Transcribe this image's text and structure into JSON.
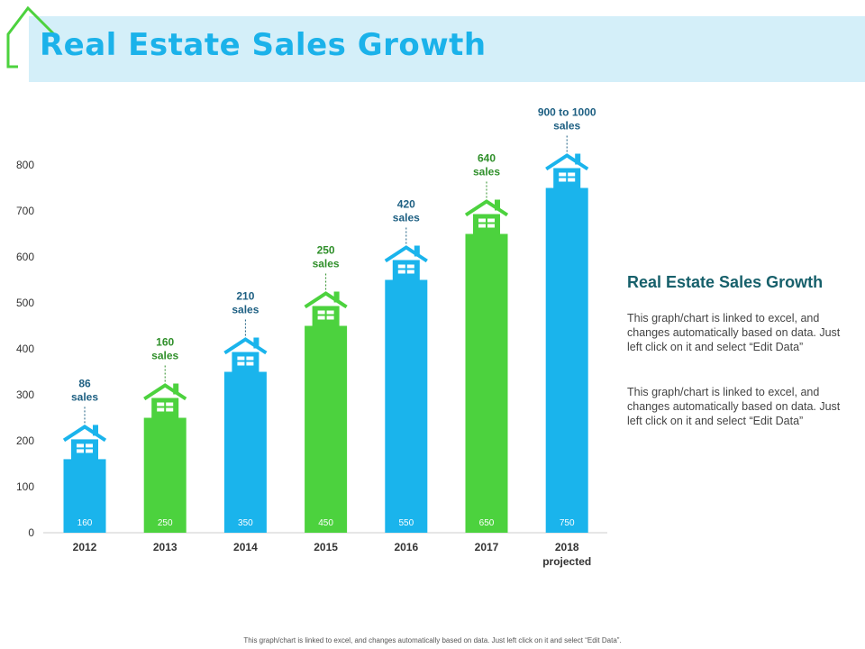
{
  "header": {
    "title": "Real Estate Sales Growth"
  },
  "side": {
    "heading": "Real Estate Sales Growth",
    "paragraphs": [
      "This graph/chart is linked to excel, and changes automatically based on data. Just left click on it and select “Edit Data”",
      "This graph/chart is linked to excel, and changes automatically based on data. Just left click on it and select “Edit Data”"
    ]
  },
  "footer": "This graph/chart is linked to excel, and changes automatically based on data. Just left click on it and select “Edit Data”.",
  "colors": {
    "blue": "#1ab4ec",
    "green": "#4cd23e",
    "label_blue": "#1d5f82",
    "label_green": "#2f8f2a"
  },
  "chart_data": {
    "type": "bar",
    "categories": [
      "2012",
      "2013",
      "2014",
      "2015",
      "2016",
      "2017",
      "2018 projected"
    ],
    "category_lines": [
      [
        "2012"
      ],
      [
        "2013"
      ],
      [
        "2014"
      ],
      [
        "2015"
      ],
      [
        "2016"
      ],
      [
        "2017"
      ],
      [
        "2018",
        "projected"
      ]
    ],
    "values": [
      160,
      250,
      350,
      450,
      550,
      650,
      750
    ],
    "bar_colors": [
      "blue",
      "green",
      "blue",
      "green",
      "blue",
      "green",
      "blue"
    ],
    "annotations": [
      [
        "86",
        "sales"
      ],
      [
        "160",
        "sales"
      ],
      [
        "210",
        "sales"
      ],
      [
        "250",
        "sales"
      ],
      [
        "420",
        "sales"
      ],
      [
        "640",
        "sales"
      ],
      [
        "900 to 1000",
        "sales"
      ]
    ],
    "ylim": [
      0,
      800
    ],
    "yticks": [
      0,
      100,
      200,
      300,
      400,
      500,
      600,
      700,
      800
    ],
    "grid": false,
    "title": "",
    "xlabel": "",
    "ylabel": ""
  }
}
